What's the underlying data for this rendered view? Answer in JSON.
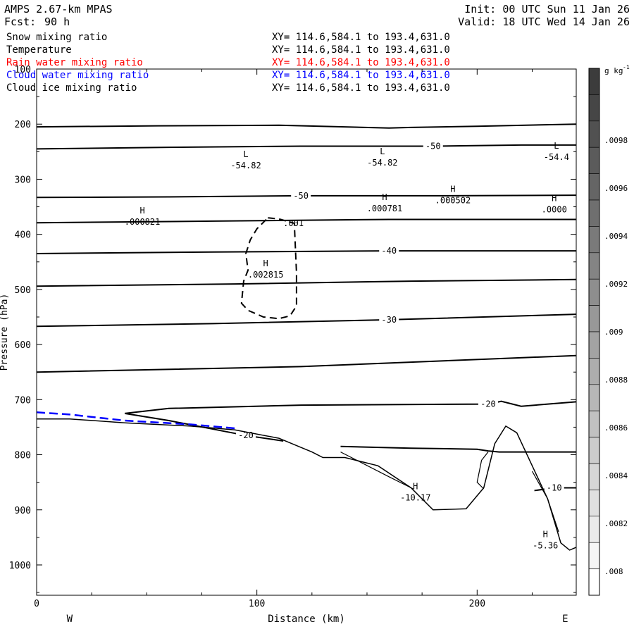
{
  "header": {
    "model": "AMPS 2.67-km MPAS",
    "fcst_label": "Fcst:",
    "fcst_value": "90 h",
    "init": "Init: 00 UTC Sun 11 Jan 26",
    "valid": "Valid: 18 UTC Wed 14 Jan 26"
  },
  "fields": [
    {
      "name": "Snow mixing ratio",
      "xy": "XY= 114.6,584.1 to 193.4,631.0",
      "color": "#000000"
    },
    {
      "name": "Temperature",
      "xy": "XY= 114.6,584.1 to 193.4,631.0",
      "color": "#000000"
    },
    {
      "name": "Rain water mixing ratio",
      "xy": "XY= 114.6,584.1 to 193.4,631.0",
      "color": "#ff0000"
    },
    {
      "name": "Cloud water mixing ratio",
      "xy": "XY= 114.6,584.1 to 193.4,631.0",
      "color": "#0000ff"
    },
    {
      "name": "Cloud ice mixing ratio",
      "xy": "XY= 114.6,584.1 to 193.4,631.0",
      "color": "#000000"
    }
  ],
  "chart_data": {
    "type": "line",
    "xlabel": "Distance (km)",
    "ylabel": "Pressure (hPa)",
    "xlim": [
      0,
      245
    ],
    "ylim": [
      100,
      1055
    ],
    "y_inverted": true,
    "x_ticks": [
      0,
      100,
      200
    ],
    "y_ticks": [
      100,
      200,
      300,
      400,
      500,
      600,
      700,
      800,
      900,
      1000
    ],
    "x_end_labels": {
      "left": "W",
      "right": "E"
    },
    "colorbar": {
      "unit": "g kg",
      "unit_exp": "-1",
      "labels": [
        ".0098",
        ".0096",
        ".0094",
        ".0092",
        ".009",
        ".0088",
        ".0086",
        ".0084",
        ".0082",
        ".008"
      ]
    },
    "temperature_isotherms": [
      {
        "points": [
          [
            0,
            205
          ],
          [
            55,
            203
          ],
          [
            110,
            202
          ],
          [
            160,
            207
          ],
          [
            170,
            206
          ],
          [
            200,
            204
          ],
          [
            245,
            200
          ]
        ]
      },
      {
        "label": "-50",
        "points": [
          [
            0,
            245
          ],
          [
            60,
            242
          ],
          [
            120,
            240
          ],
          [
            180,
            240
          ],
          [
            220,
            238
          ],
          [
            245,
            238
          ]
        ]
      },
      {
        "label": "-50",
        "points": [
          [
            0,
            333
          ],
          [
            60,
            332
          ],
          [
            120,
            330
          ],
          [
            180,
            330
          ],
          [
            245,
            329
          ]
        ]
      },
      {
        "points": [
          [
            0,
            379
          ],
          [
            80,
            376
          ],
          [
            160,
            373
          ],
          [
            245,
            373
          ]
        ]
      },
      {
        "label": "-40",
        "points": [
          [
            0,
            435
          ],
          [
            80,
            432
          ],
          [
            160,
            430
          ],
          [
            245,
            430
          ]
        ]
      },
      {
        "points": [
          [
            0,
            494
          ],
          [
            90,
            490
          ],
          [
            170,
            485
          ],
          [
            245,
            482
          ]
        ]
      },
      {
        "label": "-30",
        "points": [
          [
            0,
            567
          ],
          [
            80,
            562
          ],
          [
            160,
            555
          ],
          [
            245,
            545
          ]
        ]
      },
      {
        "points": [
          [
            0,
            650
          ],
          [
            120,
            640
          ],
          [
            245,
            620
          ]
        ]
      },
      {
        "label": "-20",
        "points": [
          [
            40,
            725
          ],
          [
            60,
            716
          ],
          [
            120,
            710
          ],
          [
            205,
            708
          ],
          [
            211,
            703
          ],
          [
            220,
            712
          ],
          [
            245,
            704
          ]
        ]
      },
      {
        "label": "-20",
        "points": [
          [
            40,
            725
          ],
          [
            60,
            738
          ],
          [
            95,
            765
          ],
          [
            112,
            775
          ]
        ]
      },
      {
        "points": [
          [
            138,
            785
          ],
          [
            170,
            788
          ],
          [
            200,
            790
          ],
          [
            205,
            793
          ],
          [
            210,
            795
          ],
          [
            245,
            795
          ]
        ]
      },
      {
        "label": "-10",
        "points": [
          [
            226,
            865
          ],
          [
            235,
            860
          ],
          [
            245,
            860
          ]
        ]
      }
    ],
    "terrain": {
      "points": [
        [
          0,
          735
        ],
        [
          15,
          735
        ],
        [
          40,
          742
        ],
        [
          70,
          748
        ],
        [
          90,
          755
        ],
        [
          110,
          770
        ],
        [
          125,
          795
        ],
        [
          130,
          805
        ],
        [
          140,
          805
        ],
        [
          155,
          820
        ],
        [
          170,
          860
        ],
        [
          180,
          900
        ],
        [
          195,
          898
        ],
        [
          203,
          860
        ],
        [
          208,
          780
        ],
        [
          213,
          748
        ],
        [
          218,
          760
        ],
        [
          225,
          820
        ],
        [
          232,
          880
        ],
        [
          238,
          960
        ],
        [
          242,
          973
        ],
        [
          245,
          968
        ]
      ]
    },
    "terrain_aux": [
      {
        "points": [
          [
            138,
            795
          ],
          [
            160,
            840
          ],
          [
            171,
            862
          ]
        ]
      },
      {
        "points": [
          [
            203,
            862
          ],
          [
            200,
            850
          ],
          [
            202,
            810
          ],
          [
            205,
            795
          ]
        ]
      },
      {
        "points": [
          [
            225,
            830
          ],
          [
            232,
            880
          ],
          [
            237,
            940
          ]
        ]
      }
    ],
    "cloud_water": {
      "color": "#0000ff",
      "points": [
        [
          0,
          723
        ],
        [
          15,
          727
        ],
        [
          40,
          738
        ],
        [
          70,
          745
        ],
        [
          90,
          752
        ]
      ]
    },
    "cloud_ice_contour": {
      "label": ".001",
      "points": [
        [
          105,
          370
        ],
        [
          110,
          372
        ],
        [
          117,
          380
        ],
        [
          118,
          470
        ],
        [
          118,
          530
        ],
        [
          115,
          548
        ],
        [
          110,
          553
        ],
        [
          103,
          550
        ],
        [
          96,
          538
        ],
        [
          93,
          525
        ],
        [
          94,
          485
        ],
        [
          96,
          465
        ],
        [
          95,
          435
        ],
        [
          97,
          410
        ],
        [
          100,
          390
        ],
        [
          105,
          370
        ]
      ]
    },
    "extrema": [
      {
        "type": "L",
        "value": "-54.82",
        "x": 95,
        "y": 270
      },
      {
        "type": "L",
        "value": "-54.82",
        "x": 157,
        "y": 265
      },
      {
        "type": "L",
        "value": "-54.4",
        "x": 236,
        "y": 255
      },
      {
        "type": "H",
        "value": ".000821",
        "x": 48,
        "y": 372
      },
      {
        "type": "H",
        "value": ".002815",
        "x": 104,
        "y": 468
      },
      {
        "type": "H",
        "value": ".000781",
        "x": 158,
        "y": 348
      },
      {
        "type": "H",
        "value": ".000502",
        "x": 189,
        "y": 333
      },
      {
        "type": "H",
        "value": ".0000",
        "x": 235,
        "y": 350
      },
      {
        "type": "H",
        "value": "-10.17",
        "x": 172,
        "y": 873
      },
      {
        "type": "H",
        "value": "-5.36",
        "x": 231,
        "y": 960
      }
    ]
  }
}
